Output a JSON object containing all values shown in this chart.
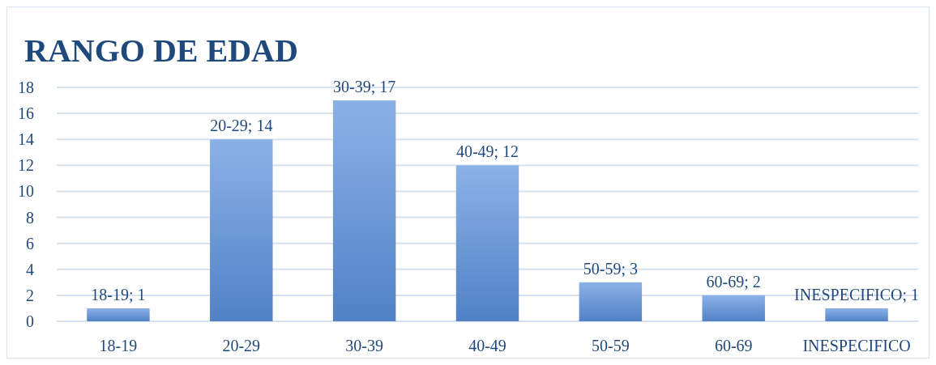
{
  "chart_data": {
    "type": "bar",
    "title": "RANGO DE EDAD",
    "categories": [
      "18-19",
      "20-29",
      "30-39",
      "40-49",
      "50-59",
      "60-69",
      "INESPECIFICO"
    ],
    "values": [
      1,
      14,
      17,
      12,
      3,
      2,
      1
    ],
    "value_labels": [
      "18-19; 1",
      "20-29; 14",
      "30-39; 17",
      "40-49; 12",
      "50-59; 3",
      "60-69; 2",
      "INESPECIFICO; 1"
    ],
    "color": "#5a90dc",
    "ylim": [
      0,
      18
    ],
    "yticks": [
      0,
      2,
      4,
      6,
      8,
      10,
      12,
      14,
      16,
      18
    ],
    "grid": "y"
  }
}
